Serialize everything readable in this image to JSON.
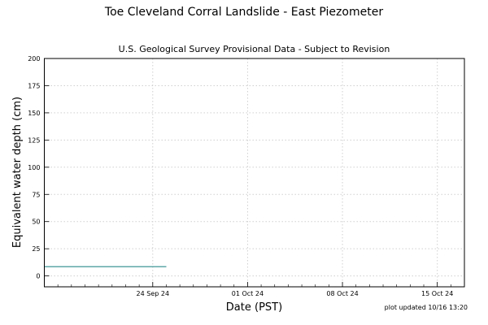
{
  "chart_data": {
    "type": "line",
    "title": "Toe Cleveland Corral Landslide - East Piezometer",
    "subtitle": "U.S. Geological Survey Provisional Data - Subject to Revision",
    "xlabel": "Date (PST)",
    "ylabel": "Equivalent water depth (cm)",
    "note": "plot updated 10/16 13:20",
    "xlim": [
      "2024-09-16",
      "2024-10-17"
    ],
    "ylim": [
      -10,
      200
    ],
    "x_ticks": [
      {
        "date": "2024-09-24",
        "label": "24 Sep 24"
      },
      {
        "date": "2024-10-01",
        "label": "01 Oct 24"
      },
      {
        "date": "2024-10-08",
        "label": "08 Oct 24"
      },
      {
        "date": "2024-10-15",
        "label": "15 Oct 24"
      }
    ],
    "minor_tick_dates": [
      "2024-09-17",
      "2024-09-18",
      "2024-09-19",
      "2024-09-20",
      "2024-09-21",
      "2024-09-22",
      "2024-09-23",
      "2024-09-25",
      "2024-09-26",
      "2024-09-27",
      "2024-09-28",
      "2024-09-29",
      "2024-09-30",
      "2024-10-02",
      "2024-10-03",
      "2024-10-04",
      "2024-10-05",
      "2024-10-06",
      "2024-10-07",
      "2024-10-09",
      "2024-10-10",
      "2024-10-11",
      "2024-10-12",
      "2024-10-13",
      "2024-10-14",
      "2024-10-16"
    ],
    "y_ticks": [
      0,
      25,
      50,
      75,
      100,
      125,
      150,
      175,
      200
    ],
    "grid": true,
    "series": [
      {
        "color": "#2a8a8a",
        "x": [
          "2024-09-16",
          "2024-09-25"
        ],
        "y": [
          8.5,
          8.5
        ]
      }
    ]
  }
}
